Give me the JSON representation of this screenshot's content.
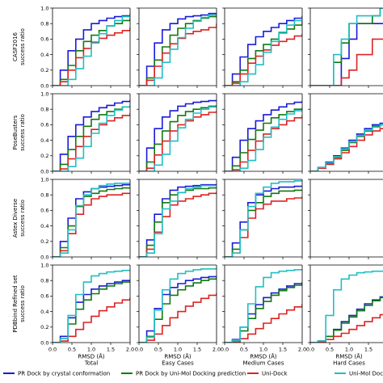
{
  "chart_data": {
    "type": "line",
    "layout": "grid of step-curve panels, 4 rows x 4 columns; rightmost column cropped at image edge",
    "xlabel": "RMSD (Å)",
    "ylabel_common": "success ratio",
    "xlim": [
      0,
      2.0
    ],
    "ylim": [
      0,
      1.0
    ],
    "x_ticks": [
      "0.0",
      "0.5",
      "1.0",
      "1.5",
      "2.0"
    ],
    "x_ticks_cropped_column": [
      "0.0",
      "0.5",
      "1.0",
      "1.5",
      "2"
    ],
    "y_ticks": [
      "0.0",
      "0.2",
      "0.4",
      "0.6",
      "0.8",
      "1.0"
    ],
    "columns": [
      "Total",
      "Easy Cases",
      "Medium Cases",
      "Hard Cases"
    ],
    "rows": [
      "CASF2016",
      "PoseBusters",
      "Astex Diverse",
      "PDBbind Refined set"
    ],
    "grid": false,
    "legend_position": "bottom",
    "series": [
      {
        "name": "PR Dock by crystal conformation",
        "color": "#1a1ad9"
      },
      {
        "name": "PR Dock by Uni-Mol Docking prediction",
        "color": "#0f7a0f"
      },
      {
        "name": "Uni-Dock",
        "color": "#dd2222"
      },
      {
        "name": "Uni-Mol Docking",
        "color": "#1fbfc6"
      }
    ],
    "x": [
      0.0,
      0.2,
      0.4,
      0.6,
      0.8,
      1.0,
      1.2,
      1.4,
      1.6,
      1.8,
      2.0
    ],
    "panels": [
      {
        "row": 0,
        "col": 0,
        "values": [
          [
            0,
            0.2,
            0.45,
            0.6,
            0.72,
            0.8,
            0.84,
            0.87,
            0.89,
            0.9,
            0.92
          ],
          [
            0,
            0.08,
            0.26,
            0.45,
            0.57,
            0.65,
            0.71,
            0.77,
            0.8,
            0.84,
            0.87
          ],
          [
            0,
            0.05,
            0.2,
            0.36,
            0.48,
            0.56,
            0.61,
            0.65,
            0.68,
            0.71,
            0.75
          ],
          [
            0,
            0,
            0.08,
            0.22,
            0.38,
            0.55,
            0.67,
            0.77,
            0.84,
            0.89,
            0.93
          ]
        ]
      },
      {
        "row": 0,
        "col": 1,
        "values": [
          [
            0,
            0.25,
            0.55,
            0.72,
            0.8,
            0.86,
            0.89,
            0.9,
            0.91,
            0.93,
            0.94
          ],
          [
            0,
            0.1,
            0.33,
            0.5,
            0.65,
            0.74,
            0.8,
            0.84,
            0.87,
            0.89,
            0.9
          ],
          [
            0,
            0.07,
            0.25,
            0.42,
            0.54,
            0.61,
            0.67,
            0.7,
            0.72,
            0.75,
            0.8
          ],
          [
            0,
            0,
            0.1,
            0.3,
            0.47,
            0.62,
            0.74,
            0.83,
            0.88,
            0.91,
            0.93
          ]
        ]
      },
      {
        "row": 0,
        "col": 2,
        "values": [
          [
            0,
            0.15,
            0.37,
            0.53,
            0.63,
            0.7,
            0.75,
            0.8,
            0.84,
            0.87,
            0.9
          ],
          [
            0,
            0.05,
            0.2,
            0.35,
            0.45,
            0.53,
            0.6,
            0.68,
            0.73,
            0.78,
            0.83
          ],
          [
            0,
            0.03,
            0.15,
            0.29,
            0.38,
            0.46,
            0.52,
            0.57,
            0.6,
            0.64,
            0.67
          ],
          [
            0,
            0,
            0.05,
            0.15,
            0.27,
            0.43,
            0.57,
            0.69,
            0.78,
            0.84,
            0.88
          ]
        ]
      },
      {
        "row": 0,
        "col": 3,
        "values": [
          [
            0,
            0,
            0,
            0,
            0.35,
            0.6,
            0.8,
            0.8,
            0.8,
            0.8,
            1.0
          ],
          [
            0,
            0,
            0,
            0.3,
            0.55,
            0.8,
            0.8,
            0.8,
            0.9,
            1.0,
            1.0
          ],
          [
            0,
            0,
            0,
            0,
            0.1,
            0.2,
            0.4,
            0.4,
            0.6,
            0.6,
            0.6
          ],
          [
            0,
            0,
            0,
            0.4,
            0.6,
            0.8,
            0.9,
            0.9,
            0.9,
            1.0,
            1.0
          ]
        ]
      },
      {
        "row": 1,
        "col": 0,
        "values": [
          [
            0,
            0.22,
            0.45,
            0.6,
            0.7,
            0.77,
            0.82,
            0.85,
            0.88,
            0.9,
            0.92
          ],
          [
            0,
            0.09,
            0.28,
            0.45,
            0.58,
            0.67,
            0.73,
            0.77,
            0.8,
            0.83,
            0.85
          ],
          [
            0,
            0.03,
            0.16,
            0.32,
            0.45,
            0.54,
            0.6,
            0.65,
            0.69,
            0.72,
            0.75
          ],
          [
            0,
            0,
            0.06,
            0.17,
            0.32,
            0.49,
            0.62,
            0.72,
            0.79,
            0.83,
            0.85
          ]
        ]
      },
      {
        "row": 1,
        "col": 1,
        "values": [
          [
            0,
            0.3,
            0.55,
            0.7,
            0.78,
            0.84,
            0.87,
            0.89,
            0.9,
            0.91,
            0.92
          ],
          [
            0,
            0.12,
            0.35,
            0.52,
            0.64,
            0.72,
            0.77,
            0.8,
            0.82,
            0.84,
            0.85
          ],
          [
            0,
            0.04,
            0.21,
            0.39,
            0.52,
            0.6,
            0.65,
            0.7,
            0.73,
            0.76,
            0.78
          ],
          [
            0,
            0,
            0.08,
            0.22,
            0.39,
            0.56,
            0.67,
            0.75,
            0.8,
            0.83,
            0.84
          ]
        ]
      },
      {
        "row": 1,
        "col": 2,
        "values": [
          [
            0,
            0.18,
            0.4,
            0.55,
            0.65,
            0.73,
            0.79,
            0.83,
            0.87,
            0.89,
            0.91
          ],
          [
            0,
            0.07,
            0.24,
            0.41,
            0.53,
            0.62,
            0.69,
            0.73,
            0.77,
            0.8,
            0.82
          ],
          [
            0,
            0.02,
            0.12,
            0.27,
            0.39,
            0.48,
            0.55,
            0.6,
            0.65,
            0.69,
            0.72
          ],
          [
            0,
            0,
            0.04,
            0.14,
            0.28,
            0.44,
            0.57,
            0.67,
            0.74,
            0.78,
            0.8
          ]
        ]
      },
      {
        "row": 1,
        "col": 3,
        "values": [
          [
            0,
            0.05,
            0.12,
            0.2,
            0.3,
            0.4,
            0.48,
            0.55,
            0.6,
            0.62,
            0.65
          ],
          [
            0,
            0.04,
            0.1,
            0.18,
            0.27,
            0.37,
            0.45,
            0.52,
            0.58,
            0.6,
            0.63
          ],
          [
            0,
            0.04,
            0.09,
            0.16,
            0.24,
            0.32,
            0.4,
            0.47,
            0.52,
            0.55,
            0.58
          ],
          [
            0,
            0.05,
            0.11,
            0.19,
            0.29,
            0.38,
            0.46,
            0.53,
            0.57,
            0.6,
            0.62
          ]
        ]
      },
      {
        "row": 2,
        "col": 0,
        "values": [
          [
            0,
            0.2,
            0.5,
            0.75,
            0.84,
            0.88,
            0.9,
            0.91,
            0.92,
            0.93,
            0.93
          ],
          [
            0,
            0.12,
            0.4,
            0.65,
            0.78,
            0.82,
            0.85,
            0.87,
            0.88,
            0.89,
            0.9
          ],
          [
            0,
            0.08,
            0.3,
            0.55,
            0.67,
            0.75,
            0.78,
            0.8,
            0.8,
            0.82,
            0.82
          ],
          [
            0,
            0.05,
            0.35,
            0.66,
            0.8,
            0.88,
            0.92,
            0.94,
            0.95,
            0.95,
            0.96
          ]
        ]
      },
      {
        "row": 2,
        "col": 1,
        "values": [
          [
            0,
            0.22,
            0.55,
            0.75,
            0.86,
            0.9,
            0.91,
            0.92,
            0.93,
            0.93,
            0.94
          ],
          [
            0,
            0.15,
            0.45,
            0.7,
            0.8,
            0.83,
            0.86,
            0.88,
            0.88,
            0.89,
            0.89
          ],
          [
            0,
            0.1,
            0.32,
            0.52,
            0.67,
            0.72,
            0.75,
            0.78,
            0.8,
            0.82,
            0.84
          ],
          [
            0,
            0.05,
            0.3,
            0.62,
            0.72,
            0.83,
            0.88,
            0.9,
            0.92,
            0.92,
            0.93
          ]
        ]
      },
      {
        "row": 2,
        "col": 2,
        "values": [
          [
            0,
            0.18,
            0.45,
            0.7,
            0.8,
            0.85,
            0.88,
            0.9,
            0.9,
            0.91,
            0.92
          ],
          [
            0,
            0.1,
            0.35,
            0.6,
            0.7,
            0.78,
            0.82,
            0.85,
            0.85,
            0.86,
            0.86
          ],
          [
            0,
            0.05,
            0.25,
            0.5,
            0.62,
            0.68,
            0.72,
            0.72,
            0.75,
            0.76,
            0.78
          ],
          [
            0,
            0.05,
            0.35,
            0.65,
            0.82,
            0.9,
            0.95,
            0.97,
            0.97,
            0.98,
            0.98
          ]
        ]
      },
      {
        "row": 3,
        "col": 0,
        "values": [
          [
            0,
            0.08,
            0.32,
            0.52,
            0.62,
            0.69,
            0.73,
            0.76,
            0.78,
            0.8,
            0.81
          ],
          [
            0,
            0.05,
            0.24,
            0.43,
            0.55,
            0.63,
            0.69,
            0.73,
            0.76,
            0.78,
            0.8
          ],
          [
            0,
            0.02,
            0.08,
            0.17,
            0.26,
            0.34,
            0.41,
            0.46,
            0.51,
            0.55,
            0.58
          ],
          [
            0,
            0.05,
            0.35,
            0.62,
            0.78,
            0.86,
            0.89,
            0.91,
            0.92,
            0.93,
            0.94
          ]
        ]
      },
      {
        "row": 3,
        "col": 1,
        "values": [
          [
            0,
            0.15,
            0.44,
            0.62,
            0.71,
            0.76,
            0.8,
            0.82,
            0.84,
            0.85,
            0.86
          ],
          [
            0,
            0.08,
            0.3,
            0.5,
            0.61,
            0.68,
            0.73,
            0.77,
            0.8,
            0.82,
            0.84
          ],
          [
            0,
            0.03,
            0.11,
            0.22,
            0.32,
            0.4,
            0.47,
            0.52,
            0.57,
            0.61,
            0.64
          ],
          [
            0,
            0.07,
            0.42,
            0.68,
            0.82,
            0.89,
            0.92,
            0.94,
            0.95,
            0.95,
            0.96
          ]
        ]
      },
      {
        "row": 3,
        "col": 2,
        "values": [
          [
            0,
            0.04,
            0.2,
            0.37,
            0.49,
            0.58,
            0.64,
            0.69,
            0.73,
            0.76,
            0.78
          ],
          [
            0,
            0.03,
            0.15,
            0.31,
            0.44,
            0.53,
            0.61,
            0.67,
            0.71,
            0.74,
            0.77
          ],
          [
            0,
            0.01,
            0.05,
            0.11,
            0.18,
            0.25,
            0.31,
            0.37,
            0.42,
            0.46,
            0.5
          ],
          [
            0,
            0.03,
            0.2,
            0.5,
            0.72,
            0.84,
            0.9,
            0.92,
            0.93,
            0.94,
            0.94
          ]
        ]
      },
      {
        "row": 3,
        "col": 3,
        "values": [
          [
            0,
            0.02,
            0.08,
            0.17,
            0.27,
            0.35,
            0.43,
            0.5,
            0.55,
            0.59,
            0.62
          ],
          [
            0,
            0.02,
            0.08,
            0.16,
            0.25,
            0.33,
            0.41,
            0.48,
            0.54,
            0.58,
            0.61
          ],
          [
            0,
            0.01,
            0.04,
            0.08,
            0.12,
            0.17,
            0.22,
            0.27,
            0.32,
            0.36,
            0.4
          ],
          [
            0,
            0.02,
            0.35,
            0.68,
            0.82,
            0.87,
            0.9,
            0.91,
            0.92,
            0.92,
            0.93
          ]
        ]
      }
    ]
  }
}
